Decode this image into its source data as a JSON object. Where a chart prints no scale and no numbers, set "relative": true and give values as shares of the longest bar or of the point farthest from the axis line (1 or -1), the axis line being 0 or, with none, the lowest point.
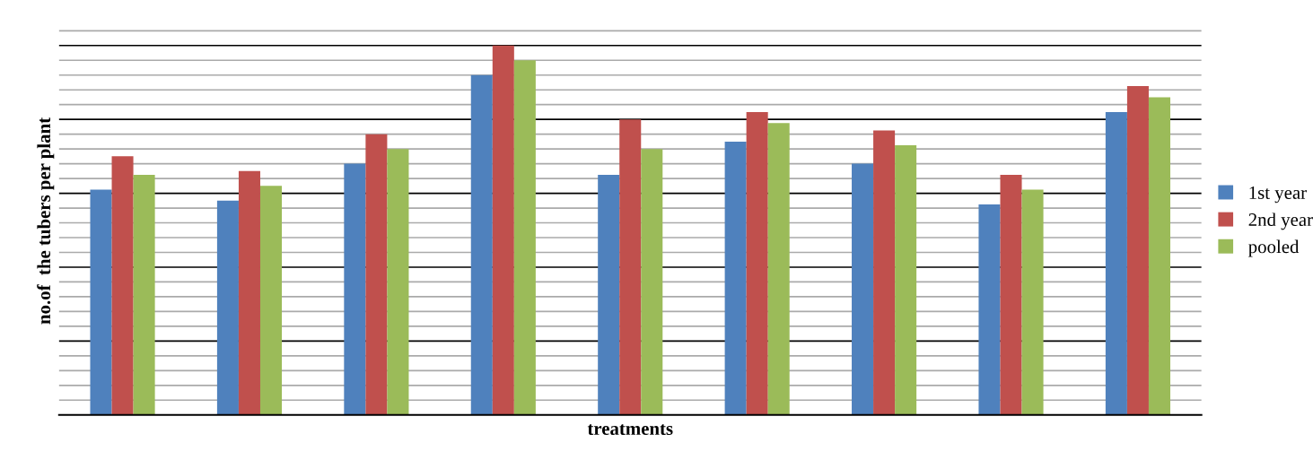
{
  "chart_data": {
    "type": "bar",
    "relative": true,
    "xlabel": "treatments",
    "ylabel": "no.of  the tubers per plant",
    "categories": [
      null,
      null,
      null,
      null,
      null,
      null,
      null,
      null,
      null
    ],
    "series": [
      {
        "name": "1st year",
        "color": "#4f81bd",
        "values": [
          0.61,
          0.58,
          0.68,
          0.92,
          0.65,
          0.74,
          0.68,
          0.57,
          0.82
        ]
      },
      {
        "name": "2nd year",
        "color": "#c0504d",
        "values": [
          0.7,
          0.66,
          0.76,
          1,
          0.8,
          0.82,
          0.77,
          0.65,
          0.89
        ]
      },
      {
        "name": "pooled",
        "color": "#9bbb59",
        "values": [
          0.65,
          0.62,
          0.72,
          0.96,
          0.72,
          0.79,
          0.73,
          0.61,
          0.86
        ]
      }
    ],
    "grid": true,
    "legend": "right"
  }
}
